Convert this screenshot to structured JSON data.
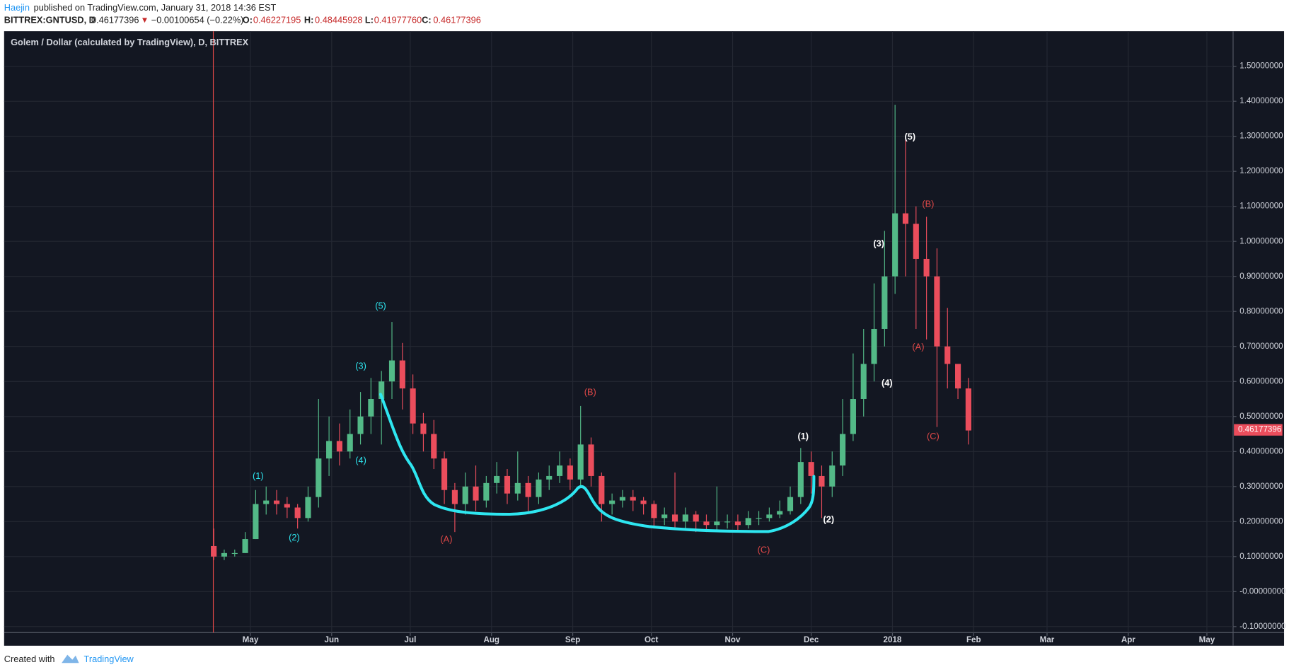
{
  "header": {
    "author": "Haejin",
    "published": "published on TradingView.com, January 31, 2018 14:36 EST",
    "symbol": "BITTREX:GNTUSD, D",
    "price": "0.46177396",
    "arrow": "▼",
    "change": "−0.00100654 (−0.22%)",
    "o_label": "O:",
    "open": "0.46227195",
    "h_label": "H:",
    "high": "0.48445928",
    "l_label": "L:",
    "low": "0.41977760",
    "c_label": "C:",
    "close": "0.46177396"
  },
  "footer": {
    "created": "Created with",
    "brand": "TradingView"
  },
  "chart_data": {
    "type": "candlestick",
    "title": "Golem / Dollar (calculated by TradingView), D, BITTREX",
    "up_color": "#53b987",
    "down_color": "#eb4d5c",
    "grid": true,
    "last_price": 0.46177396,
    "xlim": [
      -94,
      375
    ],
    "ylim": [
      -0.117,
      1.6
    ],
    "xticks": [
      {
        "value": 0,
        "label": "May"
      },
      {
        "value": 31,
        "label": "Jun"
      },
      {
        "value": 61,
        "label": "Jul"
      },
      {
        "value": 92,
        "label": "Aug"
      },
      {
        "value": 123,
        "label": "Sep"
      },
      {
        "value": 153,
        "label": "Oct"
      },
      {
        "value": 184,
        "label": "Nov"
      },
      {
        "value": 214,
        "label": "Dec"
      },
      {
        "value": 245,
        "label": "2018"
      },
      {
        "value": 276,
        "label": "Feb"
      },
      {
        "value": 304,
        "label": "Mar"
      },
      {
        "value": 335,
        "label": "Apr"
      },
      {
        "value": 365,
        "label": "May"
      }
    ],
    "yticks": [
      {
        "value": -0.1,
        "label": "-0.10000000"
      },
      {
        "value": 0,
        "label": "-0.00000000"
      },
      {
        "value": 0.1,
        "label": "0.10000000"
      },
      {
        "value": 0.2,
        "label": "0.20000000"
      },
      {
        "value": 0.3,
        "label": "0.30000000"
      },
      {
        "value": 0.4,
        "label": "0.40000000"
      },
      {
        "value": 0.5,
        "label": "0.50000000"
      },
      {
        "value": 0.6,
        "label": "0.60000000"
      },
      {
        "value": 0.7,
        "label": "0.70000000"
      },
      {
        "value": 0.8,
        "label": "0.80000000"
      },
      {
        "value": 0.9,
        "label": "0.90000000"
      },
      {
        "value": 1.0,
        "label": "1.00000000"
      },
      {
        "value": 1.1,
        "label": "1.10000000"
      },
      {
        "value": 1.2,
        "label": "1.20000000"
      },
      {
        "value": 1.3,
        "label": "1.30000000"
      },
      {
        "value": 1.4,
        "label": "1.40000000"
      },
      {
        "value": 1.5,
        "label": "1.50000000"
      }
    ],
    "x": [
      -14,
      -10,
      -6,
      -2,
      2,
      6,
      10,
      14,
      18,
      22,
      26,
      30,
      34,
      38,
      42,
      46,
      50,
      54,
      58,
      62,
      66,
      70,
      74,
      78,
      82,
      86,
      90,
      94,
      98,
      102,
      106,
      110,
      114,
      118,
      122,
      126,
      130,
      134,
      138,
      142,
      146,
      150,
      154,
      158,
      162,
      166,
      170,
      174,
      178,
      182,
      186,
      190,
      194,
      198,
      202,
      206,
      210,
      214,
      218,
      222,
      226,
      230,
      234,
      238,
      242,
      246,
      250,
      254,
      258,
      262,
      266,
      270,
      274
    ],
    "open": [
      0.13,
      0.1,
      0.11,
      0.11,
      0.15,
      0.25,
      0.26,
      0.25,
      0.24,
      0.21,
      0.27,
      0.38,
      0.43,
      0.4,
      0.45,
      0.5,
      0.55,
      0.6,
      0.66,
      0.58,
      0.48,
      0.45,
      0.38,
      0.29,
      0.25,
      0.3,
      0.26,
      0.31,
      0.33,
      0.28,
      0.31,
      0.27,
      0.32,
      0.33,
      0.36,
      0.32,
      0.42,
      0.33,
      0.25,
      0.26,
      0.27,
      0.26,
      0.25,
      0.21,
      0.22,
      0.2,
      0.22,
      0.2,
      0.19,
      0.2,
      0.2,
      0.19,
      0.21,
      0.21,
      0.22,
      0.23,
      0.27,
      0.37,
      0.33,
      0.3,
      0.36,
      0.45,
      0.55,
      0.65,
      0.75,
      0.9,
      1.08,
      1.05,
      0.95,
      0.9,
      0.7,
      0.65,
      0.58
    ],
    "high": [
      0.18,
      0.12,
      0.12,
      0.17,
      0.29,
      0.3,
      0.29,
      0.27,
      0.25,
      0.3,
      0.55,
      0.5,
      0.48,
      0.52,
      0.57,
      0.61,
      0.63,
      0.77,
      0.71,
      0.62,
      0.51,
      0.49,
      0.4,
      0.31,
      0.34,
      0.36,
      0.33,
      0.37,
      0.35,
      0.4,
      0.33,
      0.34,
      0.36,
      0.4,
      0.38,
      0.53,
      0.44,
      0.34,
      0.28,
      0.29,
      0.29,
      0.27,
      0.26,
      0.24,
      0.34,
      0.24,
      0.23,
      0.22,
      0.3,
      0.22,
      0.22,
      0.23,
      0.23,
      0.24,
      0.26,
      0.3,
      0.41,
      0.4,
      0.36,
      0.4,
      0.55,
      0.68,
      0.75,
      0.88,
      1.03,
      1.39,
      1.29,
      1.1,
      1.07,
      0.98,
      0.81,
      0.65,
      0.61
    ],
    "low": [
      0.09,
      0.09,
      0.1,
      0.11,
      0.15,
      0.22,
      0.22,
      0.21,
      0.18,
      0.2,
      0.24,
      0.33,
      0.36,
      0.38,
      0.42,
      0.45,
      0.42,
      0.55,
      0.52,
      0.45,
      0.4,
      0.35,
      0.25,
      0.17,
      0.22,
      0.23,
      0.24,
      0.28,
      0.25,
      0.26,
      0.23,
      0.25,
      0.29,
      0.31,
      0.29,
      0.3,
      0.3,
      0.2,
      0.22,
      0.24,
      0.23,
      0.22,
      0.18,
      0.19,
      0.18,
      0.18,
      0.17,
      0.17,
      0.17,
      0.18,
      0.17,
      0.18,
      0.19,
      0.2,
      0.21,
      0.22,
      0.25,
      0.28,
      0.21,
      0.27,
      0.33,
      0.43,
      0.5,
      0.6,
      0.7,
      0.85,
      0.9,
      0.75,
      0.72,
      0.47,
      0.58,
      0.55,
      0.42
    ],
    "close": [
      0.1,
      0.11,
      0.11,
      0.15,
      0.25,
      0.26,
      0.25,
      0.24,
      0.21,
      0.27,
      0.38,
      0.43,
      0.4,
      0.45,
      0.5,
      0.55,
      0.6,
      0.66,
      0.58,
      0.48,
      0.45,
      0.38,
      0.29,
      0.25,
      0.3,
      0.26,
      0.31,
      0.33,
      0.28,
      0.31,
      0.27,
      0.32,
      0.33,
      0.36,
      0.32,
      0.42,
      0.33,
      0.25,
      0.26,
      0.27,
      0.26,
      0.25,
      0.21,
      0.22,
      0.2,
      0.22,
      0.2,
      0.19,
      0.2,
      0.2,
      0.19,
      0.21,
      0.21,
      0.22,
      0.23,
      0.27,
      0.37,
      0.33,
      0.3,
      0.36,
      0.45,
      0.55,
      0.65,
      0.75,
      0.9,
      1.08,
      1.05,
      0.95,
      0.9,
      0.7,
      0.65,
      0.58,
      0.46
    ],
    "annotations": [
      {
        "text": "(1)",
        "color": "#2ee6f0"
      },
      {
        "text": "(2)",
        "color": "#2ee6f0"
      },
      {
        "text": "(3)",
        "color": "#2ee6f0"
      },
      {
        "text": "(4)",
        "color": "#2ee6f0"
      },
      {
        "text": "(5)",
        "color": "#2ee6f0"
      },
      {
        "text": "(A)",
        "color": "#e04848"
      },
      {
        "text": "(B)",
        "color": "#e04848"
      },
      {
        "text": "(C)",
        "color": "#e04848"
      },
      {
        "text": "(1)",
        "color": "#ffffff"
      },
      {
        "text": "(2)",
        "color": "#ffffff"
      },
      {
        "text": "(3)",
        "color": "#ffffff"
      },
      {
        "text": "(4)",
        "color": "#ffffff"
      },
      {
        "text": "(5)",
        "color": "#ffffff"
      },
      {
        "text": "(B)",
        "color": "#e04848"
      },
      {
        "text": "(A)",
        "color": "#e04848"
      },
      {
        "text": "(C)",
        "color": "#e04848"
      }
    ]
  }
}
